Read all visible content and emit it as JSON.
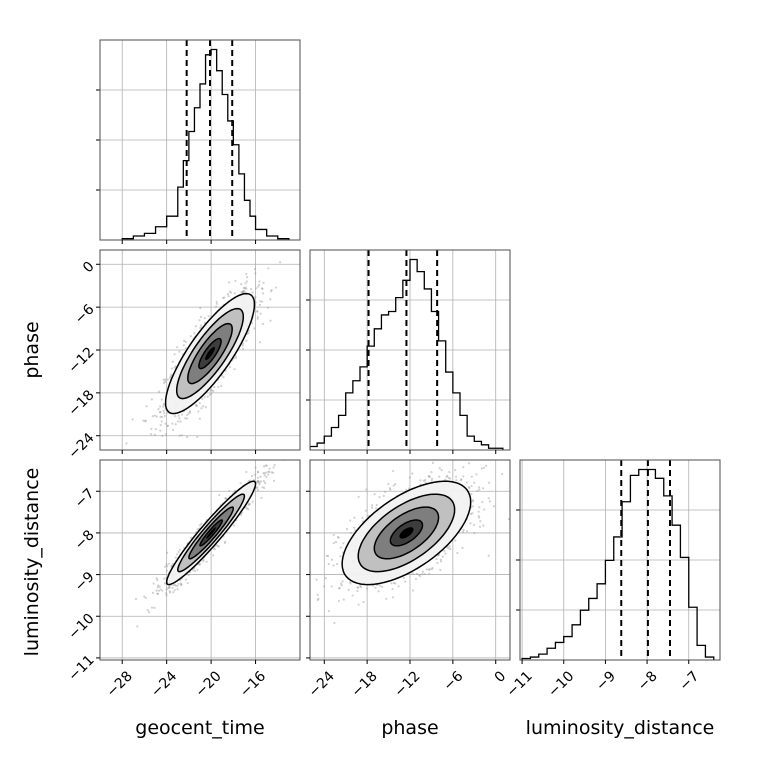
{
  "chart_data": {
    "type": "corner",
    "parameters": [
      "geocent_time",
      "phase",
      "luminosity_distance"
    ],
    "axes": {
      "geocent_time": {
        "label": "geocent_time",
        "range": [
          -30,
          -12
        ],
        "ticks": [
          -28,
          -24,
          -20,
          -16
        ],
        "tick_labels": [
          "−28",
          "−24",
          "−20",
          "−16"
        ]
      },
      "phase": {
        "label": "phase",
        "range": [
          -26,
          2
        ],
        "ticks": [
          -24,
          -18,
          -12,
          -6,
          0
        ],
        "tick_labels": [
          "−24",
          "−18",
          "−12",
          "−6",
          "0"
        ]
      },
      "luminosity_distance": {
        "label": "luminosity_distance",
        "range": [
          -11.05,
          -6.25
        ],
        "ticks": [
          -11,
          -10,
          -9,
          -8,
          -7
        ],
        "tick_labels": [
          "−11",
          "−10",
          "−9",
          "−8",
          "−7"
        ]
      }
    },
    "marginals": {
      "geocent_time": {
        "bin_edges": [
          -28,
          -27,
          -26,
          -25,
          -24,
          -23,
          -22.5,
          -22,
          -21.5,
          -21,
          -20.5,
          -20,
          -19.5,
          -19,
          -18.5,
          -18,
          -17.5,
          -17,
          -16.5,
          -16,
          -15,
          -14,
          -13
        ],
        "counts": [
          1,
          3,
          5,
          10,
          18,
          40,
          60,
          82,
          100,
          118,
          140,
          144,
          128,
          110,
          90,
          72,
          50,
          30,
          18,
          8,
          3,
          1
        ],
        "quantiles": [
          -22.2,
          -20.1,
          -18.1
        ]
      },
      "phase": {
        "bin_edges": [
          -26,
          -25,
          -24,
          -23,
          -22,
          -21,
          -20,
          -19,
          -18,
          -17,
          -16,
          -15,
          -14,
          -13,
          -12,
          -11,
          -10,
          -9,
          -8,
          -7,
          -6,
          -5,
          -4,
          -3,
          -2,
          -1,
          0,
          1
        ],
        "counts": [
          2,
          4,
          8,
          13,
          20,
          33,
          40,
          48,
          60,
          70,
          78,
          80,
          88,
          98,
          110,
          103,
          93,
          80,
          63,
          45,
          33,
          20,
          8,
          5,
          3,
          1,
          1
        ],
        "quantiles": [
          -17.8,
          -12.5,
          -8.2
        ]
      },
      "luminosity_distance": {
        "bin_edges": [
          -11,
          -10.8,
          -10.6,
          -10.4,
          -10.2,
          -10,
          -9.8,
          -9.6,
          -9.4,
          -9.2,
          -9,
          -8.8,
          -8.6,
          -8.4,
          -8.2,
          -8,
          -7.8,
          -7.6,
          -7.4,
          -7.2,
          -7,
          -6.8,
          -6.6,
          -6.4
        ],
        "counts": [
          1,
          2,
          4,
          8,
          12,
          16,
          24,
          34,
          42,
          52,
          68,
          84,
          108,
          126,
          130,
          130,
          124,
          112,
          92,
          70,
          36,
          10,
          2
        ],
        "quantiles": [
          -8.62,
          -7.98,
          -7.45
        ]
      }
    },
    "joints": [
      {
        "x": "geocent_time",
        "y": "phase",
        "mean": [
          -20.1,
          -12.5
        ],
        "std": [
          2.0,
          4.2
        ],
        "rho": 0.82
      },
      {
        "x": "geocent_time",
        "y": "luminosity_distance",
        "mean": [
          -20.0,
          -8.0
        ],
        "std": [
          2.0,
          0.62
        ],
        "rho": 0.95
      },
      {
        "x": "phase",
        "y": "luminosity_distance",
        "mean": [
          -12.5,
          -8.0
        ],
        "std": [
          4.5,
          0.62
        ],
        "rho": 0.6
      }
    ],
    "grid": true,
    "legend": "none"
  }
}
